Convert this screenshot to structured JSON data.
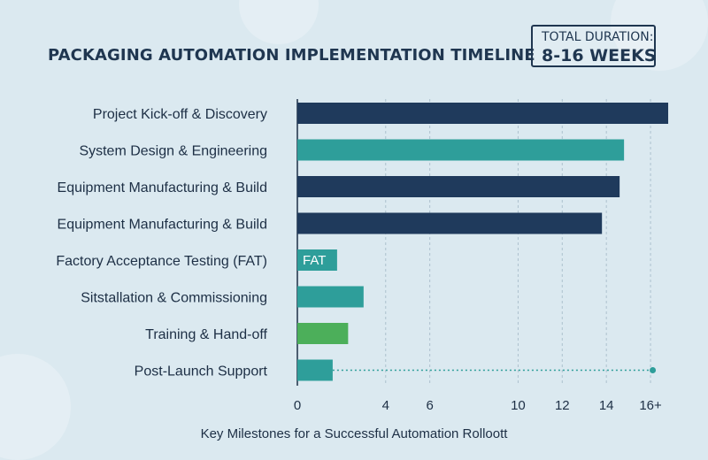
{
  "title": "PACKAGING AUTOMATION IMPLEMENTATION TIMELINE",
  "duration": {
    "label": "TOTAL DURATION:",
    "value": "8-16 WEEKS"
  },
  "caption": "Key Milestones for a Successful Automation Rolloott",
  "colors": {
    "navy": "#1f3a5c",
    "teal": "#2e9e9a",
    "green": "#4caf5a",
    "background": "#dbe9f0"
  },
  "chart_data": {
    "type": "bar",
    "orientation": "horizontal",
    "categories": [
      "Project Kick-off & Discovery",
      "System Design & Engineering",
      "Equipment Manufacturing & Build",
      "Equipment Manufacturing & Build",
      "Factory Acceptance Testing (FAT)",
      "Sitstallation & Commissioning",
      "Training & Hand-off",
      "Post-Launch Support"
    ],
    "values": [
      16.8,
      14.8,
      14.6,
      13.8,
      1.8,
      3.0,
      2.3,
      1.6
    ],
    "bar_colors": [
      "navy",
      "teal",
      "navy",
      "navy",
      "teal",
      "teal",
      "green",
      "teal"
    ],
    "bar_labels": [
      "",
      "",
      "",
      "",
      "FAT",
      "",
      "",
      ""
    ],
    "extension": {
      "category_index": 7,
      "from": 1.6,
      "to": 16.1,
      "style": "dotted"
    },
    "xticks": [
      0,
      4,
      6,
      10,
      12,
      14,
      "16+"
    ],
    "xlim": [
      0,
      17
    ],
    "grid": "vertical dashed",
    "legend": "none"
  }
}
